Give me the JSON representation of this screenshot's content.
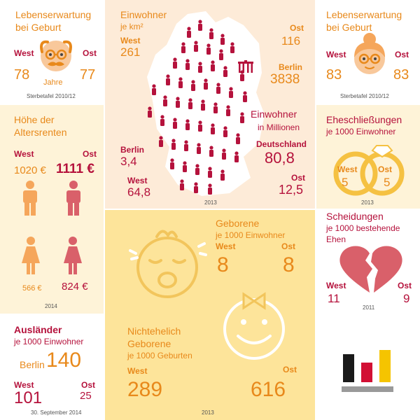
{
  "life_male": {
    "title_line1": "Lebenserwartung",
    "title_line2": "bei Geburt",
    "west_label": "West",
    "ost_label": "Ost",
    "west_value": "78",
    "ost_value": "77",
    "unit": "Jahre",
    "source": "Sterbetafel 2010/12"
  },
  "population": {
    "title_line1": "Einwohner",
    "title_line2": "je km²",
    "west_label": "West",
    "west_value": "261",
    "ost_label": "Ost",
    "ost_value": "116",
    "berlin_label": "Berlin",
    "berlin_value": "3838",
    "millions_line1": "Einwohner",
    "millions_line2": "in Millionen",
    "de_label": "Deutschland",
    "de_value": "80,8",
    "berlin2_label": "Berlin",
    "berlin2_value": "3,4",
    "west2_label": "West",
    "west2_value": "64,8",
    "ost2_label": "Ost",
    "ost2_value": "12,5",
    "year": "2013"
  },
  "life_female": {
    "title_line1": "Lebenserwartung",
    "title_line2": "bei Geburt",
    "west_label": "West",
    "ost_label": "Ost",
    "west_value": "83",
    "ost_value": "83",
    "source": "Sterbetafel 2010/12"
  },
  "pensions": {
    "title_line1": "Höhe der",
    "title_line2": "Altersrenten",
    "west_label": "West",
    "ost_label": "Ost",
    "west_male": "1020 €",
    "ost_male": "1111 €",
    "west_female": "566 €",
    "ost_female": "824 €",
    "year": "2014"
  },
  "marriages": {
    "title_line1": "Eheschließungen",
    "title_line2": "je 1000 Einwohner",
    "west_label": "West",
    "ost_label": "Ost",
    "west_value": "5",
    "ost_value": "5",
    "year": "2013"
  },
  "births": {
    "title_line1": "Geborene",
    "title_line2": "je 1000 Einwohner",
    "west_label": "West",
    "ost_label": "Ost",
    "west_value": "8",
    "ost_value": "8",
    "illegit_line1": "Nichtehelich",
    "illegit_line2": "Geborene",
    "illegit_line3": "je 1000 Geburten",
    "illegit_west_label": "West",
    "illegit_ost_label": "Ost",
    "illegit_west_value": "289",
    "illegit_ost_value": "616",
    "year": "2013"
  },
  "divorces": {
    "title_line1": "Scheidungen",
    "title_line2": "je 1000 bestehende",
    "title_line3": "Ehen",
    "west_label": "West",
    "ost_label": "Ost",
    "west_value": "11",
    "ost_value": "9",
    "year": "2011"
  },
  "foreigners": {
    "title_line1": "Ausländer",
    "title_line2": "je 1000 Einwohner",
    "berlin_label": "Berlin",
    "berlin_value": "140",
    "west_label": "West",
    "west_value": "101",
    "ost_label": "Ost",
    "ost_value": "25",
    "date": "30. September 2014"
  },
  "colors": {
    "orange": "#e8891b",
    "red": "#b5123c",
    "peach": "#fdebd8",
    "yellow": "#fde49a",
    "pale_yellow": "#fef3d8"
  },
  "logo": {
    "bar_colors": [
      "#1a1a1a",
      "#d21034",
      "#f5c400"
    ],
    "bar_heights": [
      40,
      28,
      46
    ]
  }
}
